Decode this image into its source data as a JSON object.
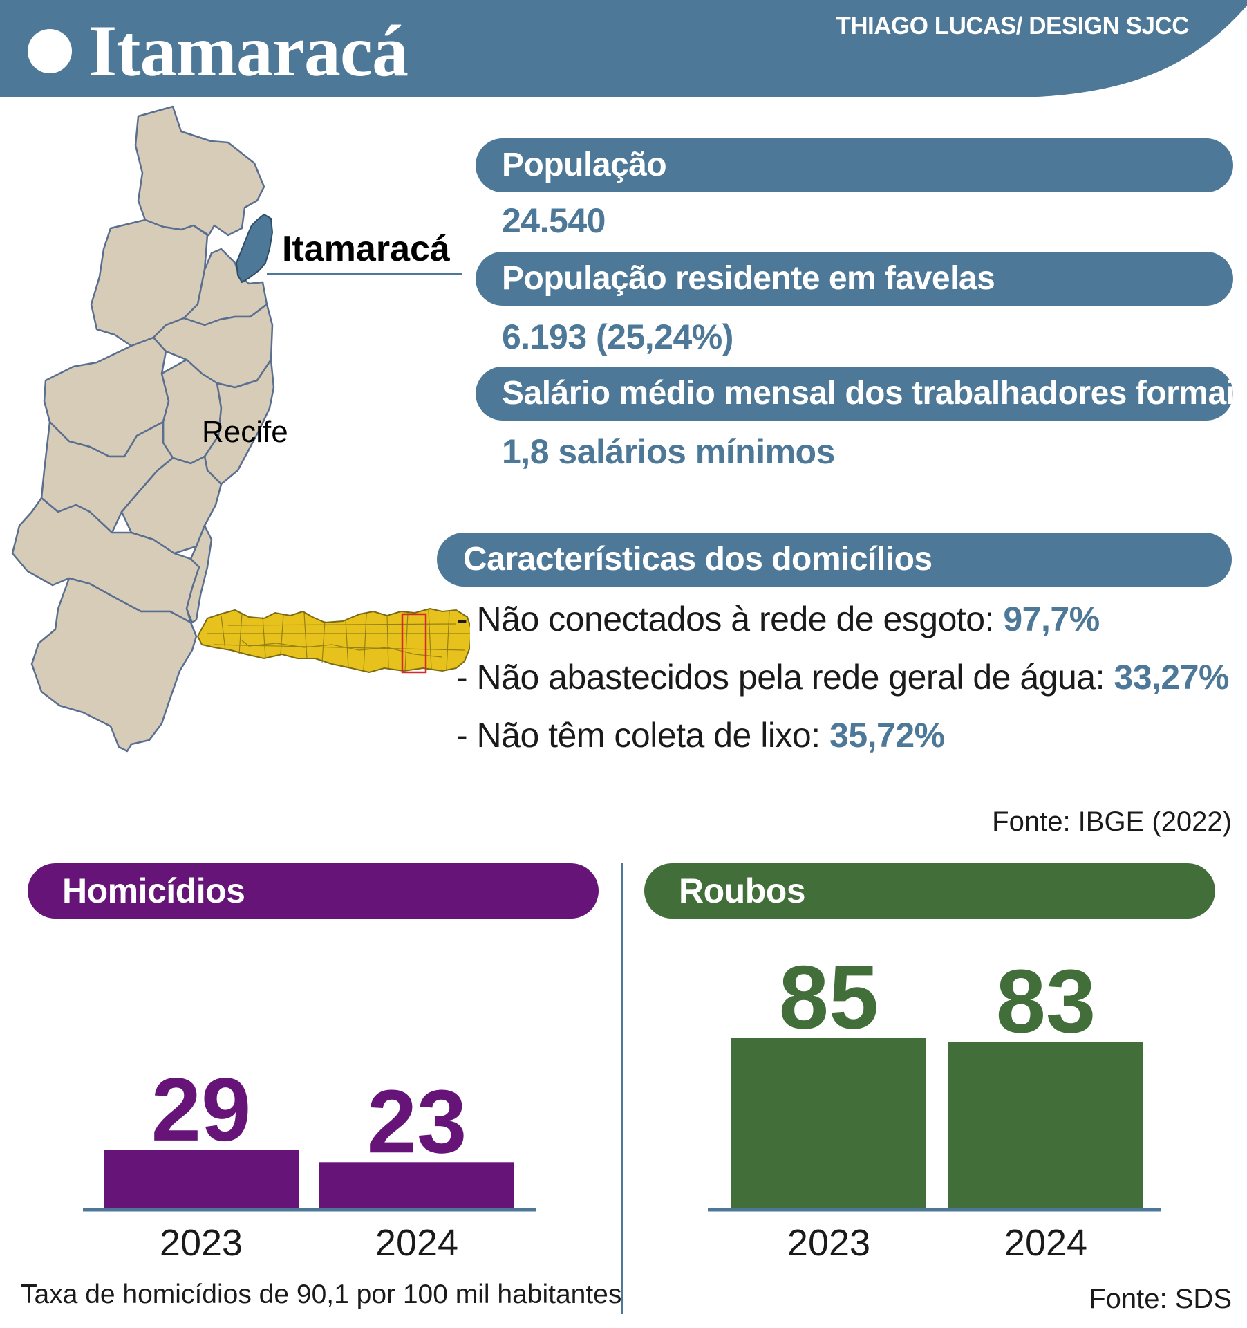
{
  "header": {
    "title": "Itamaracá",
    "credit": "THIAGO LUCAS/ DESIGN SJCC"
  },
  "map": {
    "highlight_label": "Itamaracá",
    "city_label": "Recife"
  },
  "stats": [
    {
      "label": "População",
      "value": "24.540"
    },
    {
      "label": "População residente em favelas",
      "value": "6.193 (25,24%)"
    },
    {
      "label": "Salário médio mensal dos trabalhadores formais",
      "value": "1,8 salários mínimos"
    }
  ],
  "households": {
    "title": "Características dos domicílios",
    "items": [
      {
        "text": "- Não conectados à rede de esgoto: ",
        "value": "97,7%"
      },
      {
        "text": "- Não abastecidos pela rede geral de água: ",
        "value": "33,27%"
      },
      {
        "text": "- Não têm coleta de lixo: ",
        "value": "35,72%"
      }
    ],
    "source": "Fonte: IBGE (2022)"
  },
  "colors": {
    "steel_blue": "#4e7898",
    "purple": "#661478",
    "green": "#426e3a",
    "map_fill": "#d7ccb8",
    "state_fill": "#e8c21c"
  },
  "chart_data": [
    {
      "type": "bar",
      "title": "Homicídios",
      "categories": [
        "2023",
        "2024"
      ],
      "values": [
        29,
        23
      ],
      "ylim": [
        0,
        100
      ],
      "color": "#661478",
      "note": "Taxa de homicídios de 90,1 por 100 mil habitantes"
    },
    {
      "type": "bar",
      "title": "Roubos",
      "categories": [
        "2023",
        "2024"
      ],
      "values": [
        85,
        83
      ],
      "ylim": [
        0,
        100
      ],
      "color": "#426e3a",
      "source": "Fonte: SDS"
    }
  ]
}
